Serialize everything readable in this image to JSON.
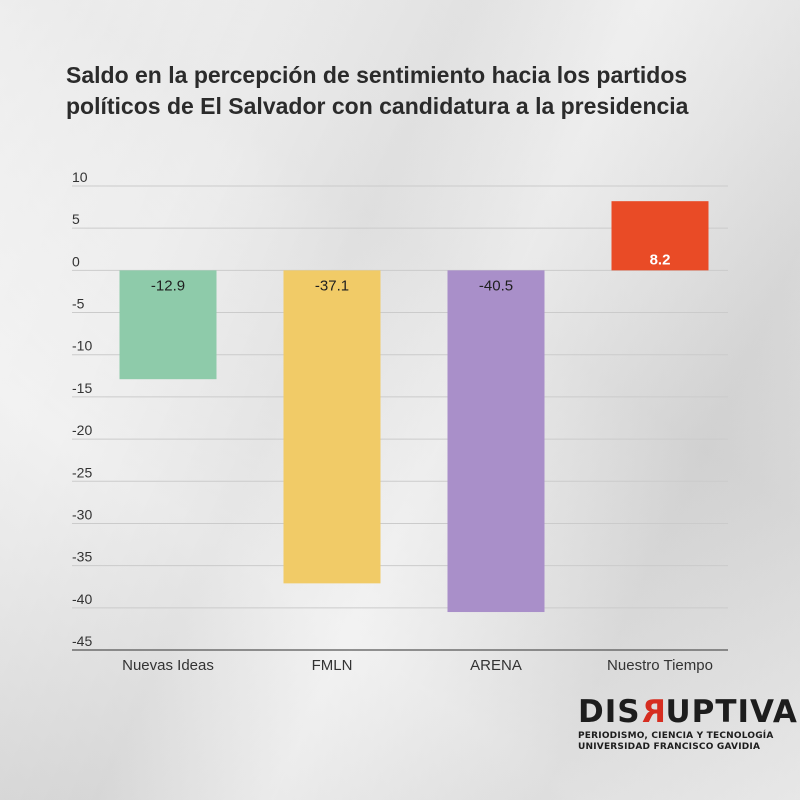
{
  "chart_data": {
    "type": "bar",
    "title": "Saldo en la percepción de sentimiento hacia los partidos políticos de El Salvador con candidatura a la presidencia",
    "xlabel": "",
    "ylabel": "",
    "categories": [
      "Nuevas Ideas",
      "FMLN",
      "ARENA",
      "Nuestro Tiempo"
    ],
    "values": [
      -12.9,
      -37.1,
      -40.5,
      8.2
    ],
    "value_labels": [
      "-12.9",
      "-37.1",
      "-40.5",
      "8.2"
    ],
    "colors": [
      "#8ecbaa",
      "#f1cb67",
      "#a98fc9",
      "#e94b26"
    ],
    "ylim": [
      -45,
      10
    ],
    "yticks": [
      10,
      5,
      0,
      -5,
      -10,
      -15,
      -20,
      -25,
      -30,
      -35,
      -40,
      -45
    ],
    "grid": true,
    "legend": "none"
  },
  "logo": {
    "word_start": "DIS",
    "word_mirrored": "R",
    "word_end": "UPTIVA",
    "line1": "PERIODISMO, CIENCIA Y TECNOLOGÍA",
    "line2": "UNIVERSIDAD FRANCISCO GAVIDIA"
  }
}
